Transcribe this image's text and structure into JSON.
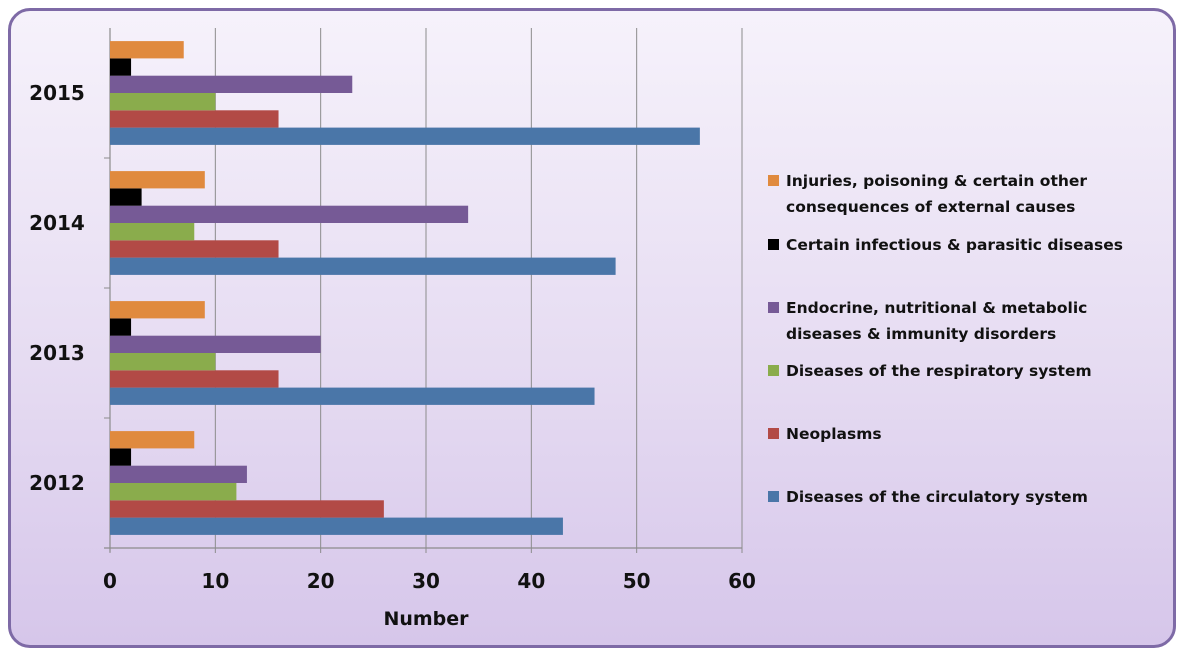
{
  "chart_data": {
    "type": "bar",
    "orientation": "horizontal",
    "categories": [
      "2012",
      "2013",
      "2014",
      "2015"
    ],
    "xlabel": "Number",
    "ylabel": "",
    "xlim": [
      0,
      60
    ],
    "xticks": [
      0,
      10,
      20,
      30,
      40,
      50,
      60
    ],
    "grid": true,
    "legend_position": "right",
    "series": [
      {
        "name": "Diseases of the circulatory system",
        "color": "#4a76a8",
        "values": [
          43,
          46,
          48,
          56
        ]
      },
      {
        "name": "Neoplasms",
        "color": "#b24a46",
        "values": [
          26,
          16,
          16,
          16
        ]
      },
      {
        "name": "Diseases of the respiratory system",
        "color": "#8aac4c",
        "values": [
          12,
          10,
          8,
          10
        ]
      },
      {
        "name": "Endocrine, nutritional & metabolic diseases & immunity disorders",
        "color": "#765a96",
        "values": [
          13,
          20,
          34,
          23
        ]
      },
      {
        "name": "Certain infectious & parasitic diseases",
        "color": "#000000",
        "values": [
          2,
          2,
          3,
          2
        ]
      },
      {
        "name": "Injuries, poisoning & certain other consequences of external causes",
        "color": "#e08a3e",
        "values": [
          8,
          9,
          9,
          7
        ]
      }
    ],
    "legend_lines": [
      [
        "Injuries, poisoning & certain other",
        "consequences of external causes"
      ],
      [
        "Certain infectious & parasitic diseases"
      ],
      [
        "Endocrine, nutritional & metabolic",
        "diseases & immunity disorders"
      ],
      [
        "Diseases of the respiratory system"
      ],
      [
        "Neoplasms"
      ],
      [
        "Diseases of the circulatory system"
      ]
    ]
  }
}
